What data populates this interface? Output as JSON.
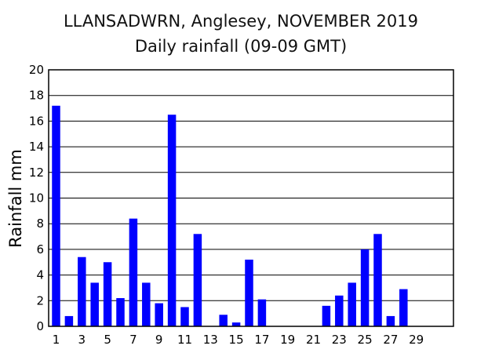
{
  "chart_data": {
    "type": "bar",
    "title": "LLANSADWRN, Anglesey, NOVEMBER 2019",
    "subtitle": "Daily rainfall (09-09 GMT)",
    "xlabel": "",
    "ylabel": "Rainfall mm",
    "ylim": [
      0,
      20
    ],
    "yticks": [
      "0",
      "2",
      "4",
      "6",
      "8",
      "10",
      "12",
      "14",
      "16",
      "18",
      "20"
    ],
    "xticks": [
      "1",
      "3",
      "5",
      "7",
      "9",
      "11",
      "13",
      "15",
      "17",
      "19",
      "21",
      "23",
      "25",
      "27",
      "29"
    ],
    "grid": true,
    "bar_color": "#0000ff",
    "categories": [
      "1",
      "2",
      "3",
      "4",
      "5",
      "6",
      "7",
      "8",
      "9",
      "10",
      "11",
      "12",
      "13",
      "14",
      "15",
      "16",
      "17",
      "18",
      "19",
      "20",
      "21",
      "22",
      "23",
      "24",
      "25",
      "26",
      "27",
      "28",
      "29",
      "30"
    ],
    "values": [
      17.2,
      0.8,
      5.4,
      3.4,
      5.0,
      2.2,
      8.4,
      3.4,
      1.8,
      16.5,
      1.5,
      7.2,
      0,
      0.9,
      0.3,
      5.2,
      2.1,
      0,
      0,
      0,
      0,
      1.6,
      2.4,
      3.4,
      6.0,
      7.2,
      0.8,
      2.9,
      0,
      0
    ]
  }
}
